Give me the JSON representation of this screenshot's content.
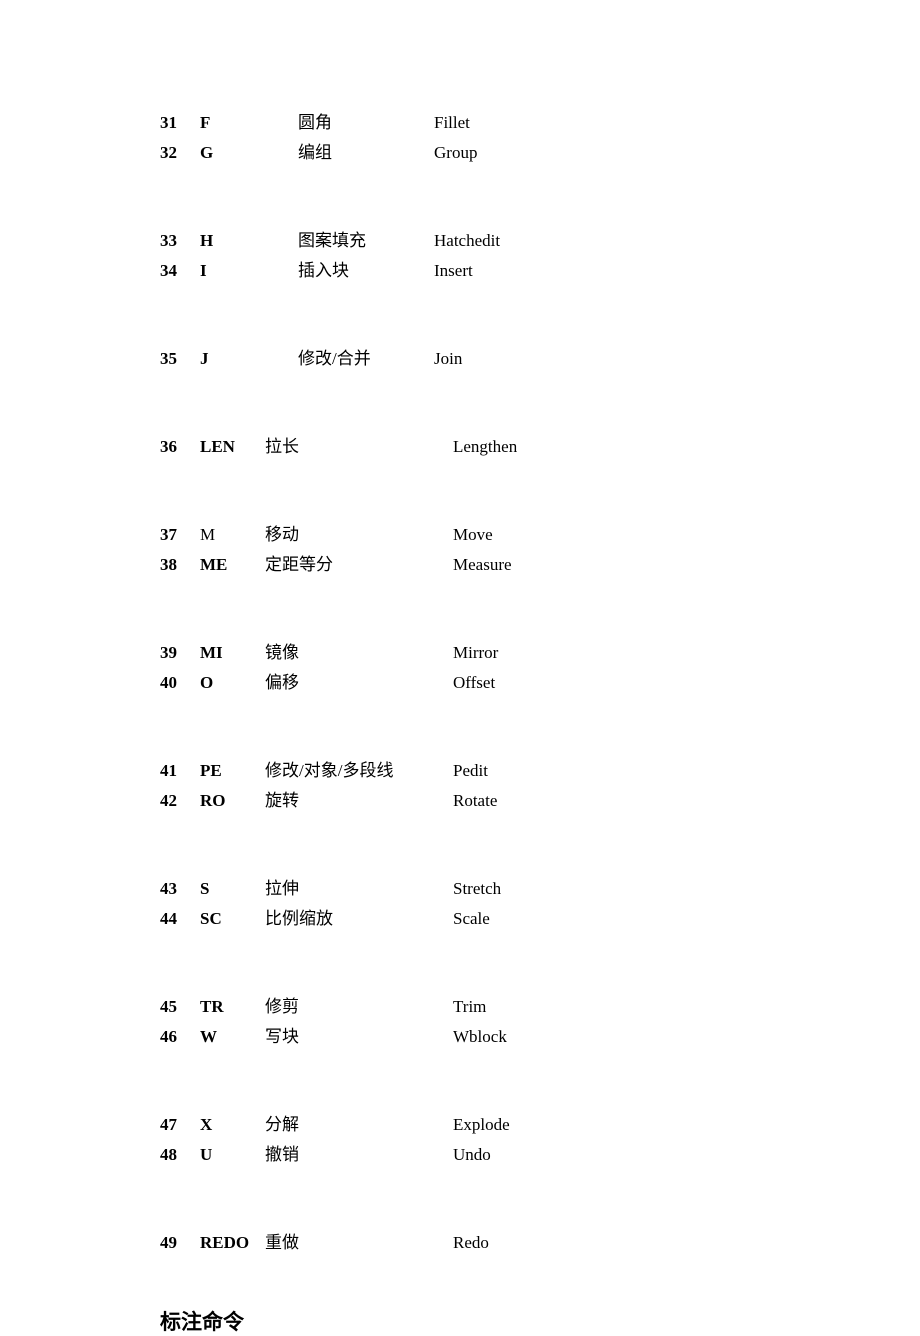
{
  "text_color": "#000000",
  "background_color": "#ffffff",
  "font_family": "Times New Roman, SimSun, serif",
  "heading_font_family": "KaiTi, STKaiti, SimSun, serif",
  "body_fontsize": 17,
  "heading_fontsize": 21,
  "line_height": 30,
  "group_gap": 58,
  "groups": [
    {
      "layout": "a",
      "rows": [
        {
          "num": "31",
          "alias": "F",
          "alias_bold": true,
          "cn": "圆角",
          "en": "Fillet"
        },
        {
          "num": "32",
          "alias": "G",
          "alias_bold": true,
          "cn": "编组",
          "en": "Group"
        }
      ]
    },
    {
      "layout": "a",
      "rows": [
        {
          "num": "33",
          "alias": "H",
          "alias_bold": true,
          "cn": "图案填充",
          "en": "Hatchedit"
        },
        {
          "num": "34",
          "alias": "I",
          "alias_bold": true,
          "cn": "插入块",
          "en": "Insert"
        }
      ]
    },
    {
      "layout": "a",
      "rows": [
        {
          "num": "35",
          "alias": "J",
          "alias_bold": true,
          "cn": "修改/合并",
          "en": "Join"
        }
      ]
    },
    {
      "layout": "b",
      "rows": [
        {
          "num": "36",
          "alias": "LEN",
          "alias_bold": true,
          "cn": "拉长",
          "en": "Lengthen"
        }
      ]
    },
    {
      "layout": "b",
      "rows": [
        {
          "num": "37",
          "alias": "M",
          "alias_bold": false,
          "cn": "移动",
          "en": "Move"
        },
        {
          "num": "38",
          "alias": "ME",
          "alias_bold": true,
          "cn": "定距等分",
          "en": "Measure"
        }
      ]
    },
    {
      "layout": "b",
      "rows": [
        {
          "num": "39",
          "alias": "MI",
          "alias_bold": true,
          "cn": "镜像",
          "en": "Mirror"
        },
        {
          "num": "40",
          "alias": "O",
          "alias_bold": true,
          "cn": "偏移",
          "en": "Offset"
        }
      ]
    },
    {
      "layout": "b",
      "rows": [
        {
          "num": "41",
          "alias": "PE",
          "alias_bold": true,
          "cn": "修改/对象/多段线",
          "en": "Pedit"
        },
        {
          "num": "42",
          "alias": "RO",
          "alias_bold": true,
          "cn": "旋转",
          "en": "Rotate"
        }
      ]
    },
    {
      "layout": "b",
      "rows": [
        {
          "num": "43",
          "alias": "S",
          "alias_bold": true,
          "cn": "拉伸",
          "en": "Stretch"
        },
        {
          "num": "44",
          "alias": "SC",
          "alias_bold": true,
          "cn": "比例缩放",
          "en": "Scale"
        }
      ]
    },
    {
      "layout": "b",
      "rows": [
        {
          "num": "45",
          "alias": "TR",
          "alias_bold": true,
          "cn": "修剪",
          "en": "Trim"
        },
        {
          "num": "46",
          "alias": "W",
          "alias_bold": true,
          "cn": "写块",
          "en": "Wblock"
        }
      ]
    },
    {
      "layout": "b",
      "rows": [
        {
          "num": "47",
          "alias": "X",
          "alias_bold": true,
          "cn": "分解",
          "en": "Explode"
        },
        {
          "num": "48",
          "alias": "U",
          "alias_bold": true,
          "cn": "撤销",
          "en": "Undo"
        }
      ]
    },
    {
      "layout": "b",
      "rows": [
        {
          "num": "49",
          "alias": "REDO",
          "alias_bold": true,
          "cn": "重做",
          "en": "Redo"
        }
      ]
    }
  ],
  "heading": "标注命令"
}
